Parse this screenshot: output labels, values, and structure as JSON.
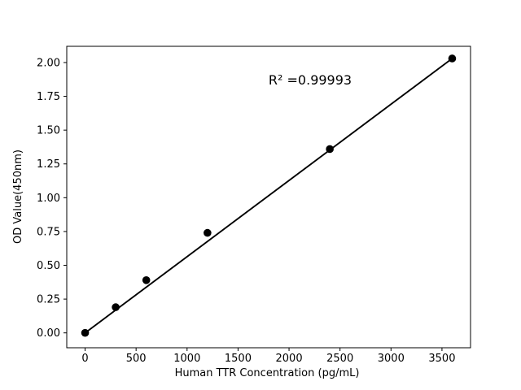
{
  "figure": {
    "background_color": "#ffffff"
  },
  "chart_data": {
    "type": "scatter",
    "title": "",
    "xlabel": "Human TTR Concentration (pg/mL)",
    "ylabel": "OD Value(450nm)",
    "x": [
      0,
      300,
      600,
      1200,
      2400,
      3600
    ],
    "y": [
      0.0,
      0.19,
      0.39,
      0.74,
      1.36,
      2.03
    ],
    "fit_line": true,
    "r_squared": 0.99993,
    "annotation": "R² =0.99993",
    "xlim": [
      -180,
      3780
    ],
    "ylim": [
      -0.11,
      2.12
    ],
    "x_ticks": [
      0,
      500,
      1000,
      1500,
      2000,
      2500,
      3000,
      3500
    ],
    "y_ticks": [
      0,
      0.25,
      0.5,
      0.75,
      1,
      1.25,
      1.5,
      1.75,
      2
    ],
    "grid": false,
    "legend": "none",
    "marker_color": "#000000",
    "line_color": "#000000",
    "text_color": "#000000"
  }
}
